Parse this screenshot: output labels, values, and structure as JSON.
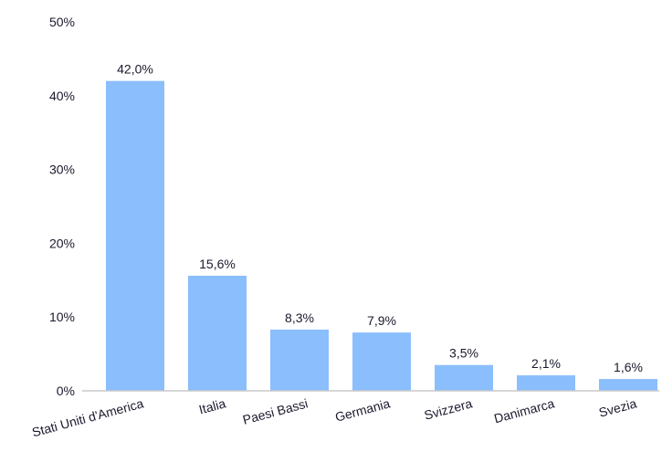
{
  "chart_data": {
    "type": "bar",
    "title": "",
    "xlabel": "",
    "ylabel": "",
    "categories": [
      "Stati Uniti d'America",
      "Italia",
      "Paesi Bassi",
      "Germania",
      "Svizzera",
      "Danimarca",
      "Svezia"
    ],
    "values": [
      42.0,
      15.6,
      8.3,
      7.9,
      3.5,
      2.1,
      1.6
    ],
    "data_labels": [
      "42,0%",
      "15,6%",
      "8,3%",
      "7,9%",
      "3,5%",
      "2,1%",
      "1,6%"
    ],
    "ylim": [
      0,
      50
    ],
    "yticks": [
      0,
      10,
      20,
      30,
      40,
      50
    ],
    "ytick_labels": [
      "0%",
      "10%",
      "20%",
      "30%",
      "40%",
      "50%"
    ],
    "grid": false,
    "legend": "none",
    "bar_color": "#8bbefc",
    "axis_color": "#c8c8c8",
    "text_color": "#1a1a2e"
  }
}
